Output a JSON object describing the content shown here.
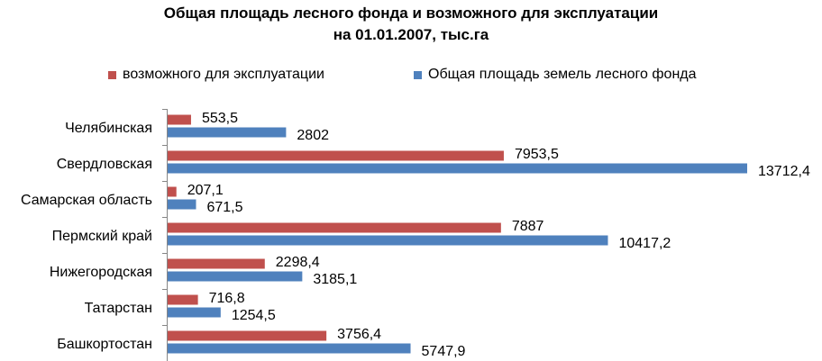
{
  "chart_data": {
    "type": "bar",
    "orientation": "horizontal",
    "title_line1": "Общая площадь лесного фонда и возможного для эксплуатации",
    "title_line2": "на 01.01.2007, тыс.га",
    "categories": [
      "Челябинская",
      "Свердловская",
      "Самарская область",
      "Пермский край",
      "Нижегородская",
      "Татарстан",
      "Башкортостан"
    ],
    "series": [
      {
        "name": "возможного для эксплуатации",
        "color": "#c0504d",
        "values": [
          553.5,
          7953.5,
          207.1,
          7887,
          2298.4,
          716.8,
          3756.4
        ],
        "labels": [
          "553,5",
          "7953,5",
          "207,1",
          "7887",
          "2298,4",
          "716,8",
          "3756,4"
        ]
      },
      {
        "name": "Общая площадь земель лесного фонда",
        "color": "#4f81bd",
        "values": [
          2802,
          13712.4,
          671.5,
          10417.2,
          3185.1,
          1254.5,
          5747.9
        ],
        "labels": [
          "2802",
          "13712,4",
          "671,5",
          "10417,2",
          "3185,1",
          "1254,5",
          "5747,9"
        ]
      }
    ],
    "xlim": [
      0,
      13712.4
    ],
    "grid": false,
    "legend_position": "top"
  }
}
